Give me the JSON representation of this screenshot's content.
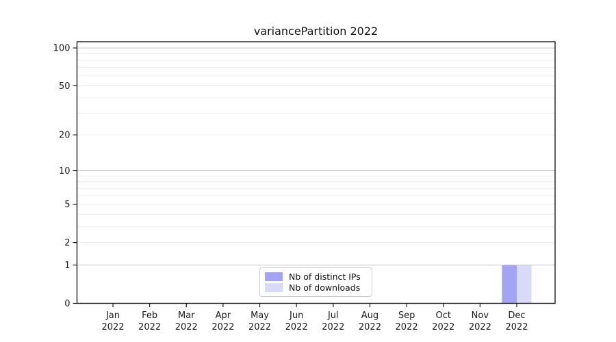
{
  "figure": {
    "title": "variancePartition 2022",
    "background": "#ffffff"
  },
  "chart_data": {
    "type": "bar",
    "title": "variancePartition 2022",
    "categories": [
      "Jan 2022",
      "Feb 2022",
      "Mar 2022",
      "Apr 2022",
      "May 2022",
      "Jun 2022",
      "Jul 2022",
      "Aug 2022",
      "Sep 2022",
      "Oct 2022",
      "Nov 2022",
      "Dec 2022"
    ],
    "series": [
      {
        "name": "Nb of distinct IPs",
        "color": "#a4a4f5",
        "values": [
          0,
          0,
          0,
          0,
          0,
          0,
          0,
          0,
          0,
          0,
          0,
          1
        ]
      },
      {
        "name": "Nb of downloads",
        "color": "#d9d9f8",
        "values": [
          0,
          0,
          0,
          0,
          0,
          0,
          0,
          0,
          0,
          0,
          0,
          1
        ]
      }
    ],
    "xlabel": "",
    "ylabel": "",
    "y_axis": {
      "scale": "log1p",
      "ticks": [
        0,
        1,
        2,
        5,
        10,
        20,
        50,
        100
      ],
      "major_gridlines": [
        1,
        10,
        100
      ],
      "minor_gridlines": [
        2,
        3,
        4,
        5,
        6,
        7,
        8,
        9,
        20,
        30,
        40,
        50,
        60,
        70,
        80,
        90
      ],
      "max": 112
    },
    "legend": {
      "entries": [
        "Nb of distinct IPs",
        "Nb of downloads"
      ],
      "position": "bottom-center"
    },
    "grid": true
  },
  "colors": {
    "axis": "#1a1a1a",
    "tick_text": "#1a1a1a",
    "major_grid": "#c4c4c4",
    "minor_grid": "#ececec",
    "legend_border": "#cccccc"
  }
}
